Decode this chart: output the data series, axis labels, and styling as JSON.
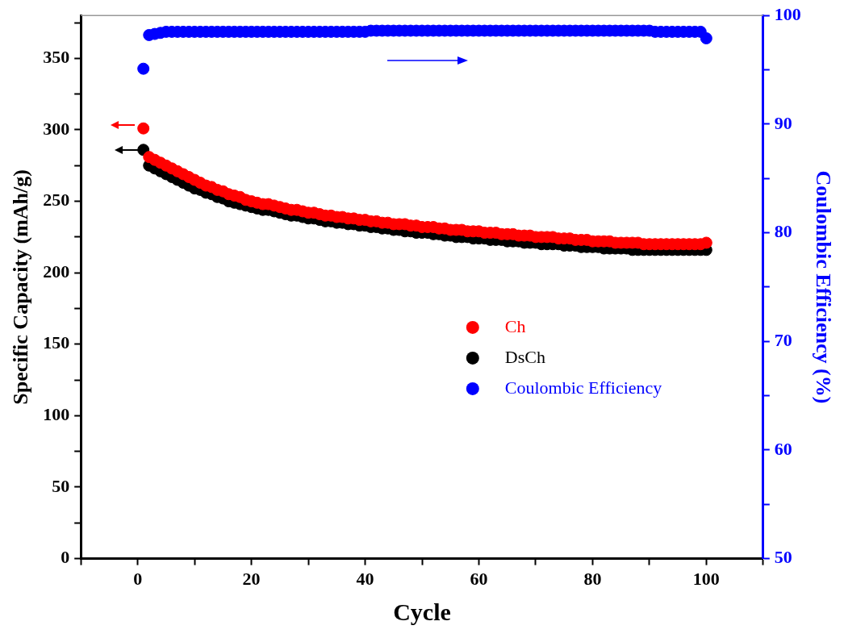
{
  "chart_data": {
    "type": "scatter",
    "xlabel": "Cycle",
    "ylabel": "Specific Capacity (mAh/g)",
    "y2label": "Coulombic Efficiency (%)",
    "xlim": [
      -10,
      110
    ],
    "xticks": [
      {
        "value": -10,
        "label": null
      },
      0,
      {
        "value": 10,
        "label": null
      },
      20,
      {
        "value": 30,
        "label": null
      },
      40,
      {
        "value": 50,
        "label": null
      },
      60,
      {
        "value": 70,
        "label": null
      },
      80,
      {
        "value": 90,
        "label": null
      },
      100,
      {
        "value": 110,
        "label": null
      }
    ],
    "ylim": [
      0,
      380
    ],
    "yticks": [
      0,
      {
        "value": 25,
        "label": null
      },
      50,
      {
        "value": 75,
        "label": null
      },
      100,
      {
        "value": 125,
        "label": null
      },
      150,
      {
        "value": 175,
        "label": null
      },
      200,
      {
        "value": 225,
        "label": null
      },
      250,
      {
        "value": 275,
        "label": null
      },
      300,
      {
        "value": 325,
        "label": null
      },
      350,
      {
        "value": 375,
        "label": null
      }
    ],
    "y2lim": [
      50,
      100
    ],
    "y2ticks": [
      50,
      {
        "value": 55,
        "label": null
      },
      60,
      {
        "value": 65,
        "label": null
      },
      70,
      {
        "value": 75,
        "label": null
      },
      80,
      {
        "value": 85,
        "label": null
      },
      90,
      {
        "value": 95,
        "label": null
      },
      100
    ],
    "x": [
      1,
      2,
      3,
      4,
      5,
      6,
      7,
      8,
      9,
      10,
      11,
      12,
      13,
      14,
      15,
      16,
      17,
      18,
      19,
      20,
      21,
      22,
      23,
      24,
      25,
      26,
      27,
      28,
      29,
      30,
      31,
      32,
      33,
      34,
      35,
      36,
      37,
      38,
      39,
      40,
      41,
      42,
      43,
      44,
      45,
      46,
      47,
      48,
      49,
      50,
      51,
      52,
      53,
      54,
      55,
      56,
      57,
      58,
      59,
      60,
      61,
      62,
      63,
      64,
      65,
      66,
      67,
      68,
      69,
      70,
      71,
      72,
      73,
      74,
      75,
      76,
      77,
      78,
      79,
      80,
      81,
      82,
      83,
      84,
      85,
      86,
      87,
      88,
      89,
      90,
      91,
      92,
      93,
      94,
      95,
      96,
      97,
      98,
      99,
      100
    ],
    "marker": "circle",
    "legend": "right",
    "grid": false,
    "series": [
      {
        "name": "Ch",
        "color": "#ff0000",
        "values": [
          301,
          281,
          279,
          277,
          275,
          273,
          271,
          269,
          267,
          265,
          263,
          261,
          260,
          258,
          257,
          255,
          254,
          253,
          251,
          250,
          249,
          248,
          248,
          247,
          246,
          245,
          244,
          244,
          243,
          242,
          242,
          241,
          240,
          240,
          239,
          239,
          238,
          238,
          237,
          237,
          236,
          236,
          235,
          235,
          234,
          234,
          234,
          233,
          233,
          232,
          232,
          232,
          231,
          231,
          230,
          230,
          230,
          229,
          229,
          229,
          228,
          228,
          228,
          227,
          227,
          227,
          226,
          226,
          226,
          225,
          225,
          225,
          225,
          224,
          224,
          224,
          223,
          223,
          223,
          222,
          222,
          222,
          222,
          221,
          221,
          221,
          221,
          221,
          220,
          220,
          220,
          220,
          220,
          220,
          220,
          220,
          220,
          220,
          220,
          221
        ]
      },
      {
        "name": "DsCh",
        "color": "#000000",
        "values": [
          286,
          275,
          273,
          271,
          269,
          267,
          265,
          263,
          261,
          259,
          258,
          256,
          255,
          253,
          252,
          250,
          249,
          248,
          247,
          246,
          245,
          244,
          244,
          243,
          242,
          241,
          240,
          240,
          239,
          238,
          238,
          237,
          236,
          236,
          235,
          235,
          234,
          234,
          233,
          233,
          232,
          232,
          231,
          231,
          230,
          230,
          229,
          229,
          228,
          228,
          228,
          227,
          227,
          226,
          226,
          225,
          225,
          225,
          224,
          224,
          224,
          223,
          223,
          223,
          222,
          222,
          222,
          221,
          221,
          221,
          220,
          220,
          220,
          220,
          219,
          219,
          219,
          218,
          218,
          218,
          218,
          217,
          217,
          217,
          217,
          217,
          216,
          216,
          216,
          216,
          216,
          216,
          216,
          216,
          216,
          216,
          216,
          216,
          216,
          216
        ]
      },
      {
        "name": "Coulombic Efficiency",
        "color": "#0000ff",
        "axis": "y2",
        "values": [
          95.1,
          98.2,
          98.3,
          98.4,
          98.5,
          98.5,
          98.5,
          98.5,
          98.5,
          98.5,
          98.5,
          98.5,
          98.5,
          98.5,
          98.5,
          98.5,
          98.5,
          98.5,
          98.5,
          98.5,
          98.5,
          98.5,
          98.5,
          98.5,
          98.5,
          98.5,
          98.5,
          98.5,
          98.5,
          98.5,
          98.5,
          98.5,
          98.5,
          98.5,
          98.5,
          98.5,
          98.5,
          98.5,
          98.5,
          98.5,
          98.6,
          98.6,
          98.6,
          98.6,
          98.6,
          98.6,
          98.6,
          98.6,
          98.6,
          98.6,
          98.6,
          98.6,
          98.6,
          98.6,
          98.6,
          98.6,
          98.6,
          98.6,
          98.6,
          98.6,
          98.6,
          98.6,
          98.6,
          98.6,
          98.6,
          98.6,
          98.6,
          98.6,
          98.6,
          98.6,
          98.6,
          98.6,
          98.6,
          98.6,
          98.6,
          98.6,
          98.6,
          98.6,
          98.6,
          98.6,
          98.6,
          98.6,
          98.6,
          98.6,
          98.6,
          98.6,
          98.6,
          98.6,
          98.6,
          98.6,
          98.5,
          98.5,
          98.5,
          98.5,
          98.5,
          98.5,
          98.5,
          98.5,
          98.5,
          97.9
        ]
      }
    ]
  }
}
